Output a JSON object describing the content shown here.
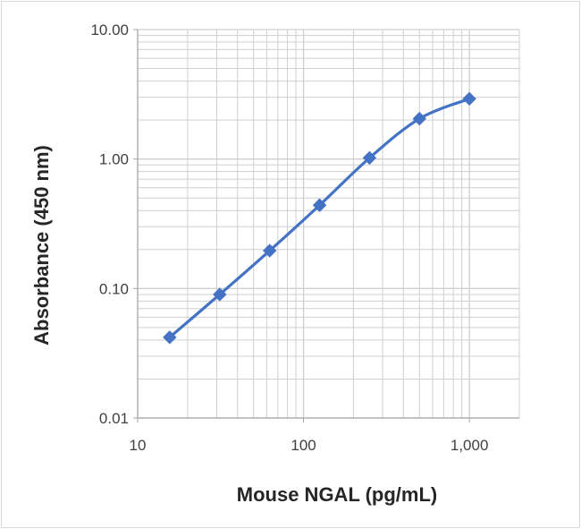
{
  "chart_data": {
    "type": "line",
    "xlabel": "Mouse NGAL (pg/mL)",
    "ylabel": "Absorbance  (450 nm)",
    "xscale": "log",
    "yscale": "log",
    "xlim": [
      10,
      2000
    ],
    "ylim": [
      0.01,
      10
    ],
    "xticks": [
      {
        "value": 10,
        "label": "10"
      },
      {
        "value": 100,
        "label": "100"
      },
      {
        "value": 1000,
        "label": "1,000"
      }
    ],
    "yticks": [
      {
        "value": 0.01,
        "label": "0.01"
      },
      {
        "value": 0.1,
        "label": "0.10"
      },
      {
        "value": 1,
        "label": "1.00"
      },
      {
        "value": 10,
        "label": "10.00"
      }
    ],
    "grid": true,
    "legend": "none",
    "series": [
      {
        "x": [
          15.6,
          31.25,
          62.5,
          125,
          250,
          500,
          1000
        ],
        "y": [
          0.042,
          0.09,
          0.196,
          0.44,
          1.02,
          2.05,
          2.92
        ],
        "color": "#4472c4",
        "marker": "diamond"
      }
    ],
    "colors": {
      "grid": "#cfcfcf",
      "axis": "#a6a6a6",
      "line": "#4472c4"
    }
  }
}
